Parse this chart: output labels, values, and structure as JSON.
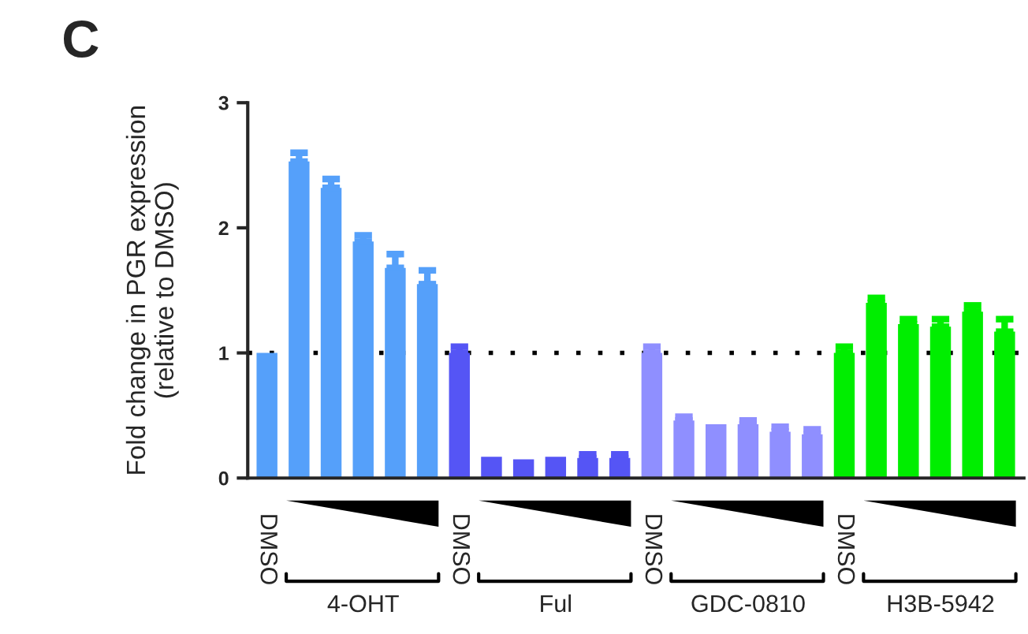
{
  "chart_data": {
    "type": "bar",
    "ylabel": "Fold change in PGR expression\n(relative to DMSO)",
    "categories": [
      "DMSO",
      null,
      null,
      null,
      null,
      null,
      "DMSO",
      null,
      null,
      null,
      null,
      null,
      "DMSO",
      null,
      null,
      null,
      null,
      null,
      "DMSO",
      null,
      null,
      null,
      null,
      null
    ],
    "values": [
      1.0,
      2.53,
      2.32,
      1.89,
      1.68,
      1.55,
      1.0,
      0.17,
      0.15,
      0.17,
      0.16,
      0.16,
      1.0,
      0.46,
      0.43,
      0.43,
      0.37,
      0.35,
      1.0,
      1.4,
      1.23,
      1.21,
      1.33,
      1.17
    ],
    "errors": [
      null,
      [
        2.53,
        2.6
      ],
      [
        2.32,
        2.39
      ],
      [
        1.89,
        1.94
      ],
      [
        1.68,
        1.79
      ],
      [
        1.55,
        1.66
      ],
      [
        1.0,
        1.05
      ],
      null,
      null,
      null,
      [
        0.16,
        0.19
      ],
      [
        0.16,
        0.19
      ],
      [
        1.0,
        1.05
      ],
      [
        0.46,
        0.49
      ],
      null,
      [
        0.43,
        0.46
      ],
      [
        0.37,
        0.41
      ],
      [
        0.35,
        0.39
      ],
      [
        1.0,
        1.05
      ],
      [
        1.4,
        1.44
      ],
      [
        1.23,
        1.27
      ],
      [
        1.21,
        1.27
      ],
      [
        1.33,
        1.38
      ],
      [
        1.17,
        1.27
      ]
    ],
    "colors": [
      "#55a0fa",
      "#55a0fa",
      "#55a0fa",
      "#55a0fa",
      "#55a0fa",
      "#55a0fa",
      "#5555f5",
      "#5555f5",
      "#5555f5",
      "#5555f5",
      "#5555f5",
      "#5555f5",
      "#8f8fff",
      "#8f8fff",
      "#8f8fff",
      "#8f8fff",
      "#8f8fff",
      "#8f8fff",
      "#00ee00",
      "#00ee00",
      "#00ee00",
      "#00ee00",
      "#00ee00",
      "#00ee00"
    ],
    "ylim": [
      0,
      3
    ],
    "yticks": [
      0,
      1,
      2,
      3
    ],
    "ref_lines": [
      {
        "axis": "y",
        "value": 1,
        "line_style": "dotted",
        "color": "#000000"
      }
    ],
    "annotations": [
      "C",
      "4-OHT",
      "Ful",
      "GDC-0810",
      "H3B-5942"
    ],
    "grid": false,
    "legend": false
  }
}
